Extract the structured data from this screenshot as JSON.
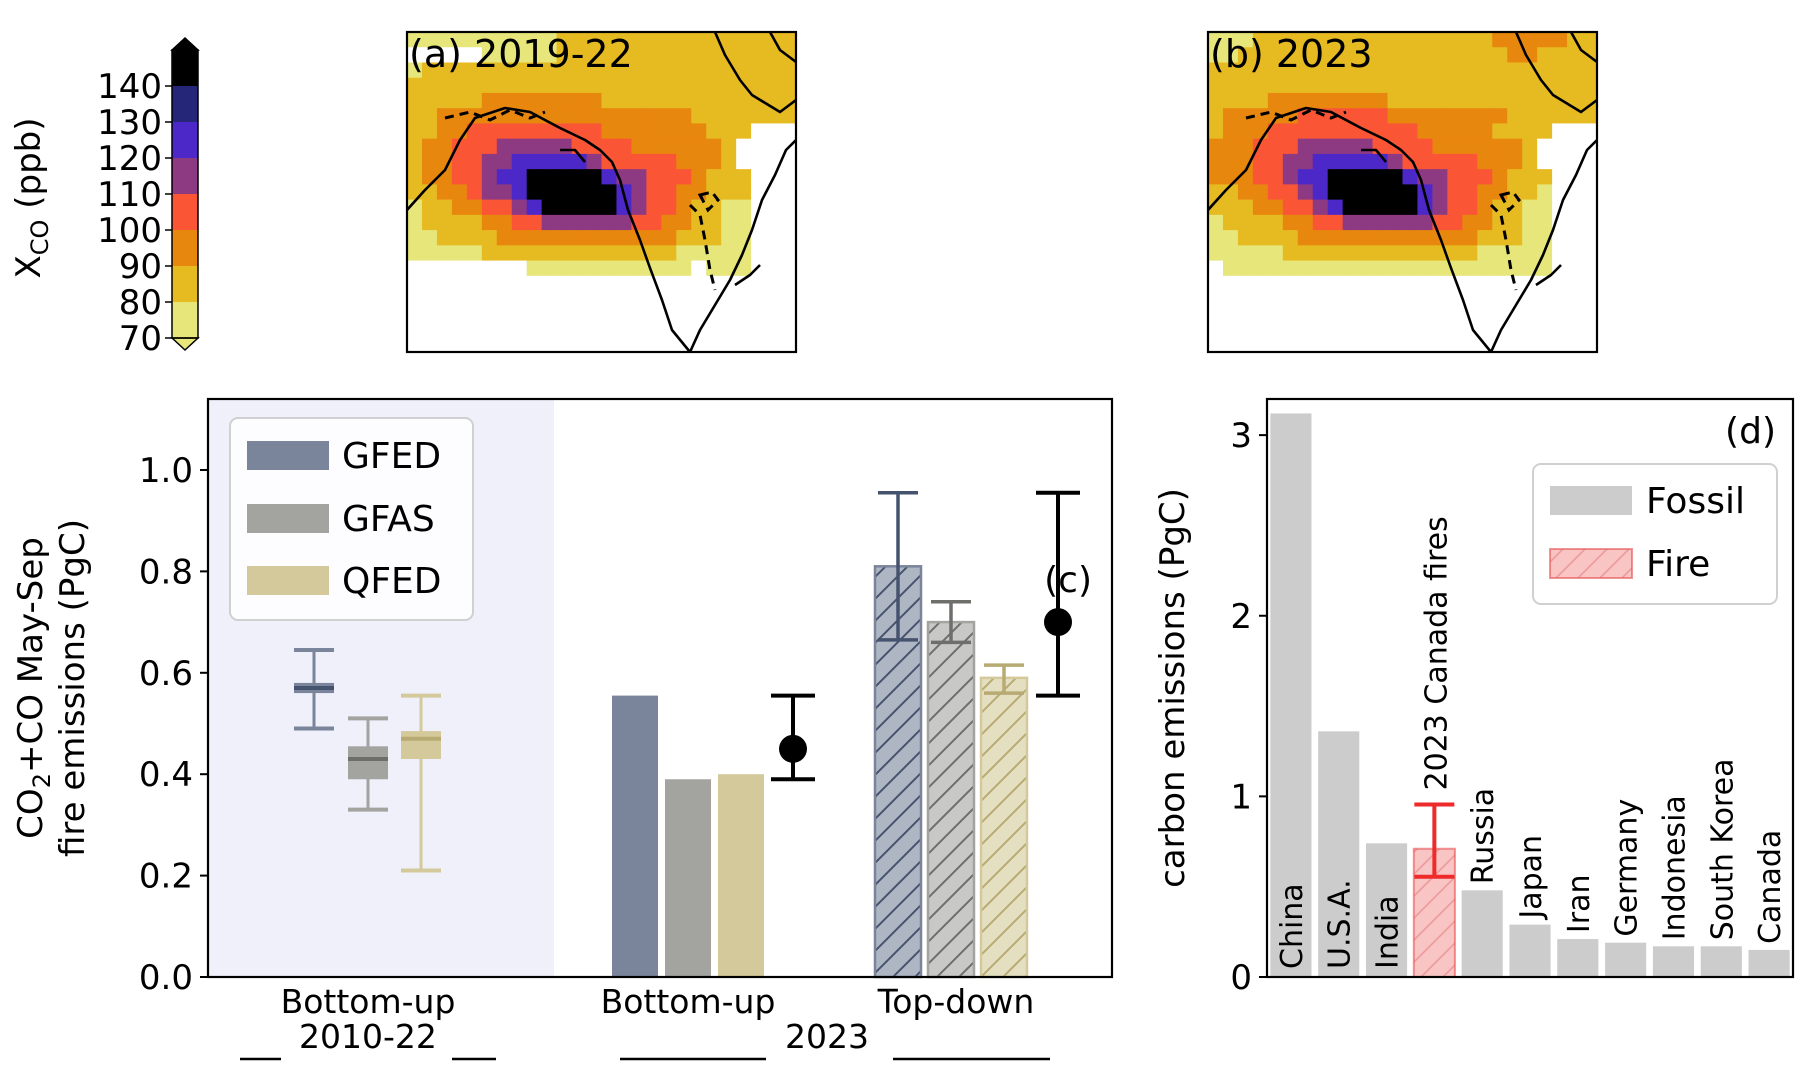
{
  "colorbar": {
    "label_main": "X",
    "label_sub": "CO",
    "label_unit": " (ppb)",
    "levels": [
      70,
      80,
      90,
      100,
      110,
      120,
      130,
      140
    ],
    "colors": [
      "#e6e67a",
      "#e6bb22",
      "#e8870e",
      "#fa5636",
      "#8e3a82",
      "#4d28c8",
      "#262678",
      "#000000"
    ]
  },
  "maps": [
    {
      "title": "(a) 2019-22",
      "rows": [
        "11111111112222222222222222",
        "00000111112222222222222222",
        "12222222222222222222222222",
        "22222222222222222222222222",
        "22222333333332222222222222",
        "22333333333333333332222222",
        "22334444444443333333222000",
        "23344455555444433333320000",
        "23344556666654444433320000",
        "23344566777776554443222000",
        "22334556777777654433222000",
        "12233445677777654432211000",
        "12222334455555544332211000",
        "11222233333333333322211000",
        "11111222222222222211111000",
        "00000000111111111110111000",
        "00000000000000000000000000",
        "00000000000000000000000000",
        "00000000000000000000000000",
        "00000000000000000000000000",
        "00000000000000000000000000"
      ]
    },
    {
      "title": "(b) 2023",
      "rows": [
        "11122222222222222223333322",
        "11222222222222222222332222",
        "22222222222222222222222222",
        "22222222222222222222222222",
        "22223333333322222222222222",
        "23333344444433333333222222",
        "23334444444444333332222000",
        "33344455555444433333320000",
        "33344556666654444433320000",
        "33344566777776554443222000",
        "22334456777777654433221000",
        "22233445677777654432211000",
        "12222334455555544332211000",
        "11222233333333333322211000",
        "11111222222222222211111000",
        "01111111111111111111111000",
        "00000000000000000000000000",
        "00000000000000000000000000",
        "00000000000000000000000000",
        "00000000000000000000000000",
        "00000000000000000000000000"
      ]
    }
  ],
  "panel_c": {
    "label": "(c)",
    "ylabel_line1_a": "CO",
    "ylabel_line1_sub": "2",
    "ylabel_line1_b": "+CO May-Sep",
    "ylabel_line2": "fire emissions (PgC)",
    "yticks": [
      "0.0",
      "0.2",
      "0.4",
      "0.6",
      "0.8",
      "1.0"
    ],
    "group_labels": [
      "Bottom-up",
      "Bottom-up",
      "Top-down"
    ],
    "period_labels": [
      "2010-22",
      "2023"
    ],
    "legend": [
      "GFED",
      "GFAS",
      "QFED"
    ],
    "colors": {
      "GFED": "#7a859b",
      "GFAS": "#a3a3a0",
      "QFED": "#d4c99a",
      "shade": "#f0f0fb"
    }
  },
  "chart_data": [
    {
      "type": "box",
      "panel": "c-left",
      "period": "2010-22",
      "ylim": [
        0,
        1.14
      ],
      "series": [
        {
          "name": "GFED",
          "whisker_low": 0.49,
          "q1": 0.56,
          "median": 0.57,
          "q3": 0.58,
          "whisker_high": 0.645
        },
        {
          "name": "GFAS",
          "whisker_low": 0.33,
          "q1": 0.39,
          "median": 0.43,
          "q3": 0.455,
          "whisker_high": 0.51
        },
        {
          "name": "QFED",
          "whisker_low": 0.21,
          "q1": 0.43,
          "median": 0.47,
          "q3": 0.485,
          "whisker_high": 0.555
        }
      ]
    },
    {
      "type": "bar",
      "panel": "c-right",
      "period": "2023",
      "categories": [
        "Bottom-up",
        "Top-down"
      ],
      "ylim": [
        0,
        1.14
      ],
      "series": [
        {
          "name": "GFED",
          "values": [
            0.555,
            0.81
          ],
          "err_low": [
            null,
            0.665
          ],
          "err_high": [
            null,
            0.955
          ]
        },
        {
          "name": "GFAS",
          "values": [
            0.39,
            0.7
          ],
          "err_low": [
            null,
            0.66
          ],
          "err_high": [
            null,
            0.74
          ]
        },
        {
          "name": "QFED",
          "values": [
            0.4,
            0.59
          ],
          "err_low": [
            null,
            0.56
          ],
          "err_high": [
            null,
            0.615
          ]
        }
      ],
      "mean_points": [
        {
          "category": "Bottom-up",
          "value": 0.45,
          "low": 0.39,
          "high": 0.555
        },
        {
          "category": "Top-down",
          "value": 0.7,
          "low": 0.555,
          "high": 0.955
        }
      ]
    },
    {
      "type": "bar",
      "panel": "d",
      "label": "(d)",
      "ylabel": "carbon emissions (PgC)",
      "yticks": [
        "0",
        "1",
        "2",
        "3"
      ],
      "ylim": [
        0,
        3.2
      ],
      "legend": [
        "Fossil",
        "Fire"
      ],
      "colors": {
        "Fossil": "#cccccc",
        "Fire": "#f8c4c4",
        "fire_edge": "#e85050",
        "err": "#ee2a2a"
      },
      "categories": [
        "China",
        "U.S.A.",
        "India",
        "2023 Canada fires",
        "Russia",
        "Japan",
        "Iran",
        "Germany",
        "Indonesia",
        "South Korea",
        "Canada"
      ],
      "values": [
        3.12,
        1.36,
        0.74,
        0.71,
        0.48,
        0.29,
        0.21,
        0.19,
        0.17,
        0.17,
        0.15
      ],
      "kinds": [
        "Fossil",
        "Fossil",
        "Fossil",
        "Fire",
        "Fossil",
        "Fossil",
        "Fossil",
        "Fossil",
        "Fossil",
        "Fossil",
        "Fossil"
      ],
      "fire_error": {
        "low": 0.555,
        "high": 0.955
      }
    }
  ]
}
